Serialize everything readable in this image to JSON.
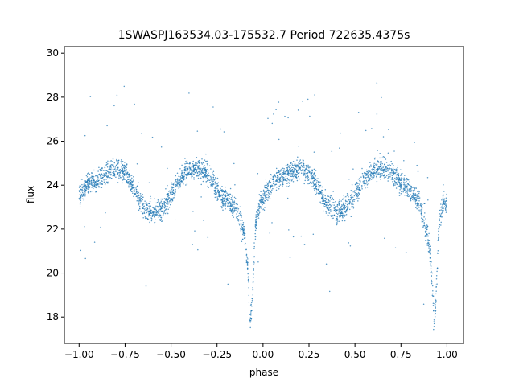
{
  "chart_data": {
    "type": "scatter",
    "title": "1SWASPJ163534.03-175532.7 Period 722635.4375s",
    "xlabel": "phase",
    "ylabel": "flux",
    "xlim": [
      -1.08,
      1.09
    ],
    "ylim": [
      16.8,
      30.3
    ],
    "x_ticks": [
      -1.0,
      -0.75,
      -0.5,
      -0.25,
      0.0,
      0.25,
      0.5,
      0.75,
      1.0
    ],
    "x_tick_labels": [
      "−1.00",
      "−0.75",
      "−0.50",
      "−0.25",
      "0.00",
      "0.25",
      "0.50",
      "0.75",
      "1.00"
    ],
    "y_ticks": [
      18,
      20,
      22,
      24,
      26,
      28,
      30
    ],
    "y_tick_labels": [
      "18",
      "20",
      "22",
      "24",
      "26",
      "28",
      "30"
    ],
    "grid": false,
    "marker_color": "#1f77b4",
    "series": [
      {
        "phase": [
          -1.0,
          -0.95,
          -0.9,
          -0.85,
          -0.8,
          -0.75,
          -0.7,
          -0.65,
          -0.6,
          -0.55,
          -0.5,
          -0.45,
          -0.4,
          -0.35,
          -0.3,
          -0.25,
          -0.2,
          -0.15,
          -0.1,
          -0.08,
          -0.07,
          -0.06,
          -0.05,
          -0.04,
          -0.02,
          0.0,
          0.05,
          0.1,
          0.15,
          0.2,
          0.25,
          0.3,
          0.35,
          0.4,
          0.45,
          0.5,
          0.55,
          0.6,
          0.65,
          0.7,
          0.75,
          0.8,
          0.85,
          0.9,
          0.92,
          0.93,
          0.94,
          0.95,
          0.96,
          0.98,
          1.0
        ],
        "flux": [
          23.5,
          24.1,
          24.2,
          24.5,
          24.8,
          24.6,
          23.8,
          23.0,
          22.7,
          22.9,
          23.6,
          24.3,
          24.7,
          24.7,
          24.5,
          23.8,
          23.3,
          23.0,
          21.8,
          19.8,
          17.8,
          18.5,
          20.5,
          22.2,
          23.1,
          23.4,
          24.1,
          24.4,
          24.6,
          24.8,
          24.6,
          23.9,
          23.1,
          22.8,
          23.0,
          23.6,
          24.3,
          24.6,
          24.8,
          24.6,
          24.2,
          23.8,
          23.2,
          21.5,
          19.5,
          17.8,
          18.7,
          21.0,
          22.5,
          23.1,
          23.3
        ]
      }
    ]
  }
}
